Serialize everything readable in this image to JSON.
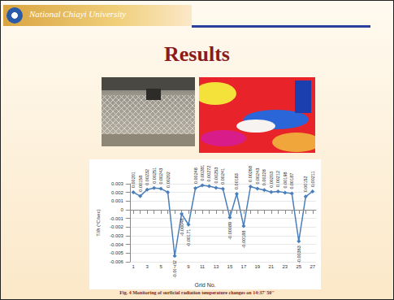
{
  "header": {
    "text": "National Chiayi University"
  },
  "title": "Results",
  "chart_data": {
    "type": "line",
    "x_label": "Grid No.",
    "y_label": "T/∂t (°C/sec)",
    "categories": [
      1,
      null,
      3,
      null,
      5,
      null,
      7,
      null,
      9,
      null,
      11,
      null,
      13,
      null,
      15,
      null,
      17,
      null,
      19,
      null,
      21,
      null,
      23,
      null,
      25,
      null,
      27
    ],
    "values": [
      0.00201,
      0.00158,
      0.00232,
      0.00251,
      0.00243,
      0.00202,
      -0.00532,
      -0.00048,
      -0.00171,
      0.00248,
      0.00281,
      0.00272,
      0.00253,
      0.00241,
      -0.00089,
      0.00183,
      -0.00188,
      0.00268,
      0.00243,
      0.00228,
      0.00203,
      0.00212,
      0.00198,
      0.00187,
      -0.00363,
      0.00152,
      0.00211
    ],
    "color": "#4a7ebb",
    "marker": "diamond",
    "data_labels": true,
    "ylim": [
      -0.006,
      0.003
    ],
    "yticks": [
      -0.006,
      -0.005,
      -0.004,
      -0.003,
      -0.002,
      -0.001,
      0,
      0.001,
      0.002,
      0.003
    ],
    "grid": true
  },
  "caption": "Fig. 4 Monitoring of surficial radiation temperature changes on 14:37' 50''"
}
